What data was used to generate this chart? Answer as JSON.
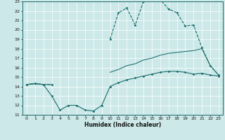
{
  "bg_color": "#cce8e8",
  "grid_color": "#ffffff",
  "line_color": "#1a6b6b",
  "xlabel": "Humidex (Indice chaleur)",
  "xlim": [
    -0.5,
    23.5
  ],
  "ylim": [
    11,
    23
  ],
  "xticks": [
    0,
    1,
    2,
    3,
    4,
    5,
    6,
    7,
    8,
    9,
    10,
    11,
    12,
    13,
    14,
    15,
    16,
    17,
    18,
    19,
    20,
    21,
    22,
    23
  ],
  "yticks": [
    11,
    12,
    13,
    14,
    15,
    16,
    17,
    18,
    19,
    20,
    21,
    22,
    23
  ],
  "hours": [
    0,
    1,
    2,
    3,
    4,
    5,
    6,
    7,
    8,
    9,
    10,
    11,
    12,
    13,
    14,
    15,
    16,
    17,
    18,
    19,
    20,
    21,
    22,
    23
  ],
  "line_max": [
    14.2,
    14.3,
    14.2,
    14.2,
    null,
    null,
    null,
    null,
    null,
    null,
    19.0,
    21.8,
    22.3,
    20.5,
    23.0,
    23.3,
    23.2,
    22.2,
    21.8,
    20.4,
    20.5,
    18.1,
    16.2,
    15.2
  ],
  "line_avg": [
    14.2,
    14.3,
    14.2,
    14.2,
    null,
    null,
    null,
    null,
    null,
    null,
    15.5,
    15.8,
    16.2,
    16.4,
    16.8,
    17.0,
    17.3,
    17.5,
    17.6,
    17.7,
    17.8,
    18.0,
    16.2,
    15.2
  ],
  "line_min": [
    14.2,
    14.3,
    14.2,
    13.0,
    11.5,
    12.0,
    12.0,
    11.5,
    11.4,
    12.0,
    14.0,
    14.4,
    14.7,
    14.9,
    15.1,
    15.3,
    15.5,
    15.6,
    15.6,
    15.5,
    15.3,
    15.4,
    15.2,
    15.1
  ]
}
